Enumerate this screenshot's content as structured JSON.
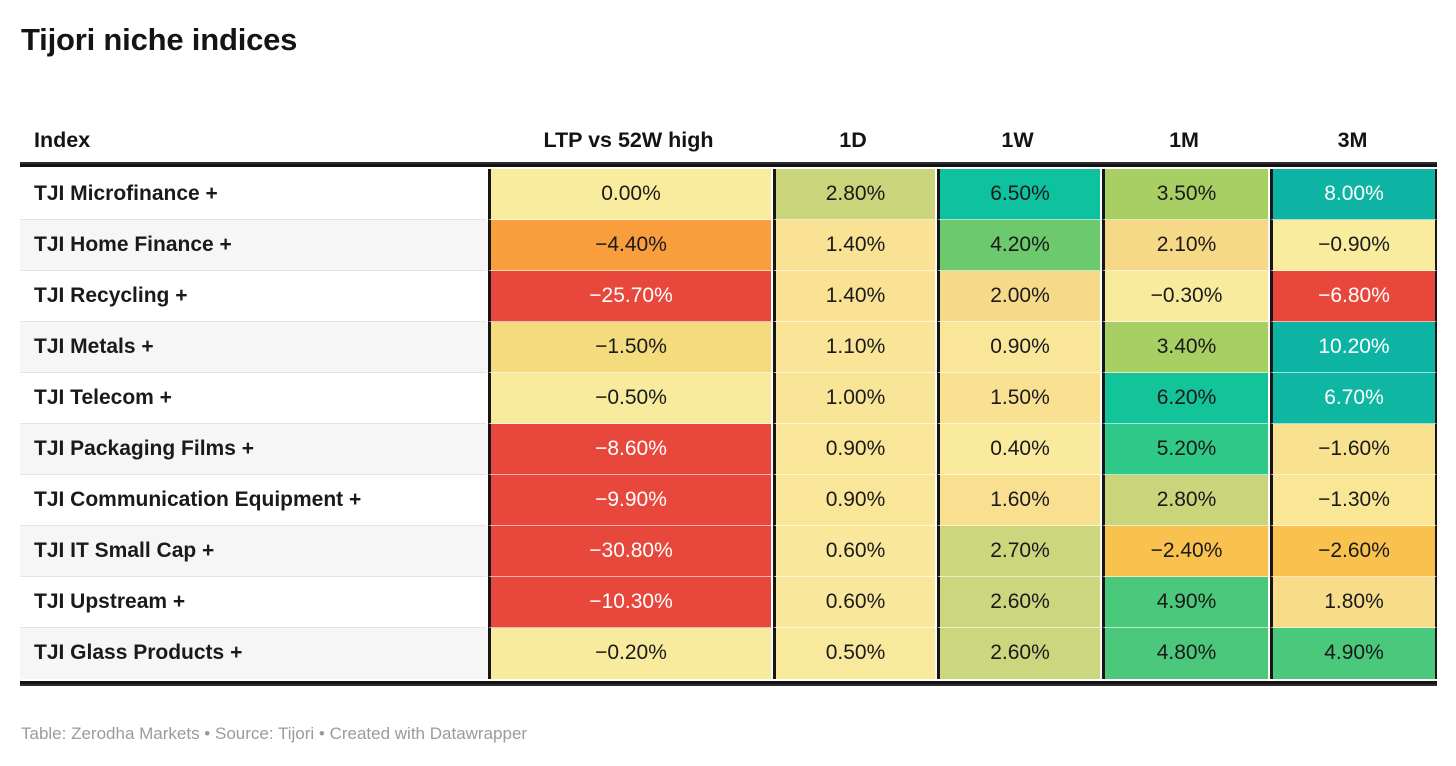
{
  "title": "Tijori niche indices",
  "footer": {
    "text": "Table: Zerodha Markets • Source: Tijori • Created with Datawrapper"
  },
  "table": {
    "columns": [
      {
        "key": "index",
        "label": "Index"
      },
      {
        "key": "ltp",
        "label": "LTP vs 52W high"
      },
      {
        "key": "d1",
        "label": "1D"
      },
      {
        "key": "w1",
        "label": "1W"
      },
      {
        "key": "m1",
        "label": "1M"
      },
      {
        "key": "m3",
        "label": "3M"
      }
    ],
    "rows": [
      {
        "index": "TJI Microfinance +",
        "cells": [
          {
            "text": "0.00%",
            "bg": "#f9ec9f",
            "fg": "#1a1a1a"
          },
          {
            "text": "2.80%",
            "bg": "#c9d47b",
            "fg": "#1a1a1a"
          },
          {
            "text": "6.50%",
            "bg": "#0ec2a0",
            "fg": "#1a1a1a"
          },
          {
            "text": "3.50%",
            "bg": "#a7cf64",
            "fg": "#1a1a1a"
          },
          {
            "text": "8.00%",
            "bg": "#0db4a4",
            "fg": "#ffffff"
          }
        ]
      },
      {
        "index": "TJI Home Finance +",
        "cells": [
          {
            "text": "−4.40%",
            "bg": "#f99e3d",
            "fg": "#1a1a1a"
          },
          {
            "text": "1.40%",
            "bg": "#fae294",
            "fg": "#1a1a1a"
          },
          {
            "text": "4.20%",
            "bg": "#6cc96e",
            "fg": "#1a1a1a"
          },
          {
            "text": "2.10%",
            "bg": "#f6d987",
            "fg": "#1a1a1a"
          },
          {
            "text": "−0.90%",
            "bg": "#f9ec9e",
            "fg": "#1a1a1a"
          }
        ]
      },
      {
        "index": "TJI Recycling +",
        "cells": [
          {
            "text": "−25.70%",
            "bg": "#e8483c",
            "fg": "#ffffff"
          },
          {
            "text": "1.40%",
            "bg": "#fae294",
            "fg": "#1a1a1a"
          },
          {
            "text": "2.00%",
            "bg": "#f7da89",
            "fg": "#1a1a1a"
          },
          {
            "text": "−0.30%",
            "bg": "#f9eb9e",
            "fg": "#1a1a1a"
          },
          {
            "text": "−6.80%",
            "bg": "#e8483c",
            "fg": "#ffffff"
          }
        ]
      },
      {
        "index": "TJI Metals +",
        "cells": [
          {
            "text": "−1.50%",
            "bg": "#f4dc7e",
            "fg": "#1a1a1a"
          },
          {
            "text": "1.10%",
            "bg": "#f9e497",
            "fg": "#1a1a1a"
          },
          {
            "text": "0.90%",
            "bg": "#f9e699",
            "fg": "#1a1a1a"
          },
          {
            "text": "3.40%",
            "bg": "#a7cf64",
            "fg": "#1a1a1a"
          },
          {
            "text": "10.20%",
            "bg": "#0db4a4",
            "fg": "#ffffff"
          }
        ]
      },
      {
        "index": "TJI Telecom +",
        "cells": [
          {
            "text": "−0.50%",
            "bg": "#f9eb9d",
            "fg": "#1a1a1a"
          },
          {
            "text": "1.00%",
            "bg": "#f9e598",
            "fg": "#1a1a1a"
          },
          {
            "text": "1.50%",
            "bg": "#fae192",
            "fg": "#1a1a1a"
          },
          {
            "text": "6.20%",
            "bg": "#13c39a",
            "fg": "#1a1a1a"
          },
          {
            "text": "6.70%",
            "bg": "#0fb7a2",
            "fg": "#ffffff"
          }
        ]
      },
      {
        "index": "TJI Packaging Films +",
        "cells": [
          {
            "text": "−8.60%",
            "bg": "#e8483c",
            "fg": "#ffffff"
          },
          {
            "text": "0.90%",
            "bg": "#f9e699",
            "fg": "#1a1a1a"
          },
          {
            "text": "0.40%",
            "bg": "#f9ea9e",
            "fg": "#1a1a1a"
          },
          {
            "text": "5.20%",
            "bg": "#2fca8a",
            "fg": "#1a1a1a"
          },
          {
            "text": "−1.60%",
            "bg": "#f9e28f",
            "fg": "#1a1a1a"
          }
        ]
      },
      {
        "index": "TJI Communication Equipment +",
        "cells": [
          {
            "text": "−9.90%",
            "bg": "#e8483c",
            "fg": "#ffffff"
          },
          {
            "text": "0.90%",
            "bg": "#f9e699",
            "fg": "#1a1a1a"
          },
          {
            "text": "1.60%",
            "bg": "#f9e090",
            "fg": "#1a1a1a"
          },
          {
            "text": "2.80%",
            "bg": "#c9d47b",
            "fg": "#1a1a1a"
          },
          {
            "text": "−1.30%",
            "bg": "#f9e795",
            "fg": "#1a1a1a"
          }
        ]
      },
      {
        "index": "TJI IT Small Cap +",
        "cells": [
          {
            "text": "−30.80%",
            "bg": "#e8483c",
            "fg": "#ffffff"
          },
          {
            "text": "0.60%",
            "bg": "#f9e89c",
            "fg": "#1a1a1a"
          },
          {
            "text": "2.70%",
            "bg": "#cbd67d",
            "fg": "#1a1a1a"
          },
          {
            "text": "−2.40%",
            "bg": "#f9c24e",
            "fg": "#1a1a1a"
          },
          {
            "text": "−2.60%",
            "bg": "#f9c24e",
            "fg": "#1a1a1a"
          }
        ]
      },
      {
        "index": "TJI Upstream +",
        "cells": [
          {
            "text": "−10.30%",
            "bg": "#e8483c",
            "fg": "#ffffff"
          },
          {
            "text": "0.60%",
            "bg": "#f9e89c",
            "fg": "#1a1a1a"
          },
          {
            "text": "2.60%",
            "bg": "#ccd67e",
            "fg": "#1a1a1a"
          },
          {
            "text": "4.90%",
            "bg": "#4ac87c",
            "fg": "#1a1a1a"
          },
          {
            "text": "1.80%",
            "bg": "#f7dc8a",
            "fg": "#1a1a1a"
          }
        ]
      },
      {
        "index": "TJI Glass Products +",
        "cells": [
          {
            "text": "−0.20%",
            "bg": "#f9eb9d",
            "fg": "#1a1a1a"
          },
          {
            "text": "0.50%",
            "bg": "#f9e99d",
            "fg": "#1a1a1a"
          },
          {
            "text": "2.60%",
            "bg": "#ccd67e",
            "fg": "#1a1a1a"
          },
          {
            "text": "4.80%",
            "bg": "#4cc87d",
            "fg": "#1a1a1a"
          },
          {
            "text": "4.90%",
            "bg": "#4ac87c",
            "fg": "#1a1a1a"
          }
        ]
      }
    ]
  },
  "chart_data": {
    "type": "table",
    "title": "Tijori niche indices",
    "columns": [
      "Index",
      "LTP vs 52W high",
      "1D",
      "1W",
      "1M",
      "3M"
    ],
    "units": "%",
    "heatmap": "red-yellow-green diverging, white text on strong red/teal",
    "rows": [
      [
        "TJI Microfinance +",
        0.0,
        2.8,
        6.5,
        3.5,
        8.0
      ],
      [
        "TJI Home Finance +",
        -4.4,
        1.4,
        4.2,
        2.1,
        -0.9
      ],
      [
        "TJI Recycling +",
        -25.7,
        1.4,
        2.0,
        -0.3,
        -6.8
      ],
      [
        "TJI Metals +",
        -1.5,
        1.1,
        0.9,
        3.4,
        10.2
      ],
      [
        "TJI Telecom +",
        -0.5,
        1.0,
        1.5,
        6.2,
        6.7
      ],
      [
        "TJI Packaging Films +",
        -8.6,
        0.9,
        0.4,
        5.2,
        -1.6
      ],
      [
        "TJI Communication Equipment +",
        -9.9,
        0.9,
        1.6,
        2.8,
        -1.3
      ],
      [
        "TJI IT Small Cap +",
        -30.8,
        0.6,
        2.7,
        -2.4,
        -2.6
      ],
      [
        "TJI Upstream +",
        -10.3,
        0.6,
        2.6,
        4.9,
        1.8
      ],
      [
        "TJI Glass Products +",
        -0.2,
        0.5,
        2.6,
        4.8,
        4.9
      ]
    ],
    "accent_colors": {
      "red": "#e8483c",
      "orange": "#f99e3d",
      "light_orange": "#f9c24e",
      "pale_yellow": "#f9ec9f",
      "olive": "#c9d47b",
      "yellow_green": "#a7cf64",
      "green": "#4ac87c",
      "teal": "#0db4a4"
    }
  }
}
